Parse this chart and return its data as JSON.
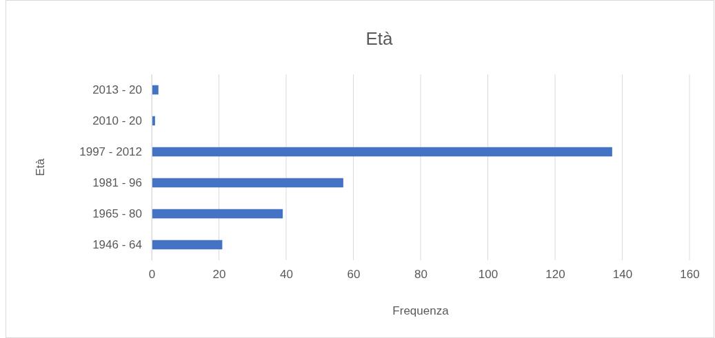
{
  "chart_data": {
    "type": "bar",
    "orientation": "horizontal",
    "title": "Età",
    "xlabel": "Frequenza",
    "ylabel": "Età",
    "categories": [
      "2013 - 20",
      "2010 - 20",
      "1997 - 2012",
      "1981 - 96",
      "1965 - 80",
      "1946 - 64"
    ],
    "values": [
      2,
      1,
      137,
      57,
      39,
      21
    ],
    "color": "#4472c4",
    "xlim": [
      0,
      160
    ],
    "xticks": [
      0,
      20,
      40,
      60,
      80,
      100,
      120,
      140,
      160
    ],
    "grid": "x"
  }
}
